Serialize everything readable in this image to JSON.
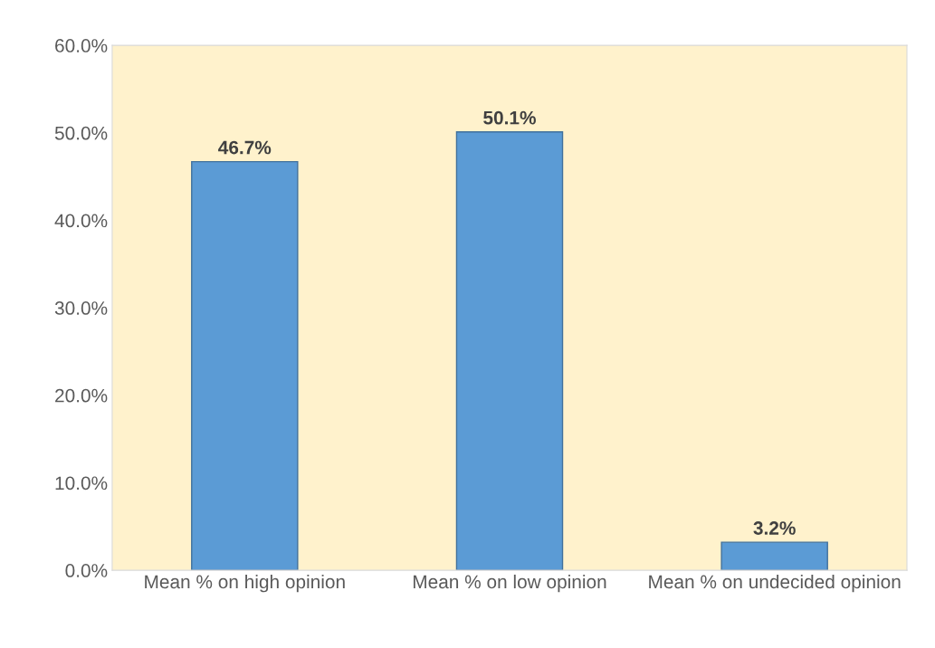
{
  "chart_data": {
    "type": "bar",
    "categories": [
      "Mean % on high opinion",
      "Mean % on low opinion",
      "Mean % on undecided opinion"
    ],
    "values": [
      46.7,
      50.1,
      3.2
    ],
    "color": "#5b9bd5",
    "value_labels": [
      "46.7%",
      "50.1%",
      "3.2%"
    ],
    "ylim": [
      0,
      60
    ],
    "yticks": [
      {
        "value": 0,
        "label": "0.0%"
      },
      {
        "value": 10,
        "label": "10.0%"
      },
      {
        "value": 20,
        "label": "20.0%"
      },
      {
        "value": 30,
        "label": "30.0%"
      },
      {
        "value": 40,
        "label": "40.0%"
      },
      {
        "value": 50,
        "label": "50.0%"
      },
      {
        "value": 60,
        "label": "60.0%"
      }
    ]
  }
}
